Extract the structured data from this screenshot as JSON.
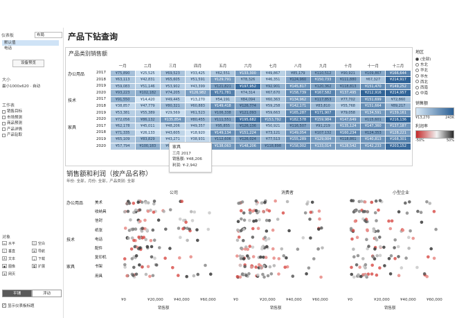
{
  "left_panel": {
    "tab": "仪表板",
    "layout_select": "布局",
    "devices": [
      "默认值",
      "电话"
    ],
    "device_preview": "设备预览",
    "size_label": "大小",
    "size_value": "最小1000x620 · 自动",
    "sheets_label": "工作表",
    "sheets": [
      "销售目标",
      "市场预测",
      "商品预测",
      "产品详情",
      "产品钻取"
    ],
    "objects_label": "对象",
    "objects": [
      {
        "icon": "▭",
        "label": "水平"
      },
      {
        "icon": "□",
        "label": "空白"
      },
      {
        "icon": "▯",
        "label": "垂直"
      },
      {
        "icon": "⊞",
        "label": "导航"
      },
      {
        "icon": "A",
        "label": "文本"
      },
      {
        "icon": "⤓",
        "label": "下载"
      },
      {
        "icon": "▣",
        "label": "图像"
      },
      {
        "icon": "⧉",
        "label": "扩展"
      },
      {
        "icon": "⊕",
        "label": "网页"
      }
    ],
    "toggle": [
      "平铺",
      "浮动"
    ],
    "show_title": "显示仪表板标题"
  },
  "title": "产品下钻查询",
  "heatmap": {
    "title": "产品类别销售额",
    "months": [
      "一月",
      "二月",
      "三月",
      "四月",
      "五月",
      "六月",
      "七月",
      "八月",
      "九月",
      "十月",
      "十一月",
      "十二月"
    ],
    "categories": [
      "办公用品",
      "技术",
      "家具"
    ],
    "years": [
      "2017",
      "2018",
      "2019",
      "2020"
    ],
    "cells": [
      [
        "¥75,890",
        "¥25,525",
        "¥69,523",
        "¥33,425",
        "¥62,551",
        "¥133,300",
        "¥49,867",
        "¥85,179",
        "¥110,512",
        "¥90,921",
        "¥109,867",
        "¥166,644"
      ],
      [
        "¥63,113",
        "¥42,831",
        "¥65,605",
        "¥51,591",
        "¥129,791",
        "¥78,326",
        "¥46,351",
        "¥124,960",
        "¥150,733",
        "¥111,880",
        "¥67,327",
        "¥214,917"
      ],
      [
        "¥59,083",
        "¥51,146",
        "¥53,902",
        "¥43,399",
        "¥121,821",
        "¥197,952",
        "¥92,901",
        "¥145,817",
        "¥120,362",
        "¥118,813",
        "¥151,470",
        "¥149,252"
      ],
      [
        "¥93,223",
        "¥102,182",
        "¥74,205",
        "¥126,982",
        "¥171,781",
        "¥74,314",
        "¥67,670",
        "¥158,739",
        "¥167,582",
        "¥137,495",
        "¥212,916",
        "¥214,957"
      ],
      [
        "¥91,550",
        "¥14,420",
        "¥49,445",
        "¥13,270",
        "¥54,191",
        "¥84,094",
        "¥60,363",
        "¥134,962",
        "¥117,853",
        "¥77,702",
        "¥151,699",
        "¥72,860"
      ],
      [
        "¥38,857",
        "¥47,779",
        "¥80,321",
        "¥60,883",
        "¥149,418",
        "¥126,774",
        "¥59,258",
        "¥142,171",
        "¥83,810",
        "¥55,768",
        "¥151,664",
        "¥89,217"
      ],
      [
        "¥53,381",
        "¥55,389",
        "¥29,569",
        "¥61,523",
        "¥106,338",
        "¥121,093",
        "¥59,663",
        "¥165,287",
        "¥171,907",
        "¥79,058",
        "¥134,591",
        "¥139,161"
      ],
      [
        "¥72,056",
        "¥86,132",
        "¥135,854",
        "¥80,455",
        "¥111,551",
        "¥195,682",
        "¥153,792",
        "¥182,578",
        "¥159,984",
        "¥147,649",
        "¥115,601",
        "¥216,136"
      ],
      [
        "¥62,178",
        "¥45,011",
        "¥48,206",
        "¥49,357",
        "¥95,855",
        "¥126,136",
        "¥50,921",
        "¥116,507",
        "¥91,219",
        "¥135,124",
        "¥147,360",
        "¥137,187"
      ],
      [
        "¥71,335",
        "¥26,133",
        "¥43,605",
        "¥18,920",
        "¥149,134",
        "¥151,224",
        "¥73,121",
        "¥149,054",
        "¥107,132",
        "¥160,234",
        "¥124,353",
        "¥128,221"
      ],
      [
        "¥65,109",
        "¥83,829",
        "¥43,271",
        "¥38,931",
        "¥112,606",
        "¥126,024",
        "¥77,513",
        "¥155,289",
        "¥129,004",
        "¥118,861",
        "¥140,813",
        "¥168,301"
      ],
      [
        "¥57,794",
        "¥100,183",
        "¥63,140",
        "¥77,103",
        "¥138,063",
        "¥148,206",
        "¥118,898",
        "¥158,002",
        "¥133,014",
        "¥128,542",
        "¥142,233",
        "¥203,152"
      ]
    ]
  },
  "tooltip": {
    "category": "家具",
    "period": "三月 2017",
    "sales_label": "销售额:",
    "sales_value": "¥48,206",
    "profit_label": "利润:",
    "profit_value": "¥-2,942"
  },
  "legend": {
    "region_title": "地区",
    "regions": [
      "(全部)",
      "东北",
      "华北",
      "华东",
      "西北",
      "西南",
      "中南"
    ],
    "selected_region": "(全部)",
    "sales_title": "销售额",
    "sales_min": "¥13,270",
    "sales_max": "243K",
    "profit_title": "利润率",
    "profit_min": "-50%",
    "profit_max": "50%",
    "color_low": "#d8e9f7",
    "color_high": "#2b5f94"
  },
  "scatter": {
    "title": "销售额和利润（按产品名称）",
    "filter_note": "年份: 全部，月份: 全部，产品类别: 全部",
    "segments": [
      "公司",
      "消费者",
      "小型企业"
    ],
    "groups": [
      {
        "category": "办公用品",
        "subs": [
          "美术",
          "收纳具",
          "信封",
          "纸张"
        ]
      },
      {
        "category": "技术",
        "subs": [
          "电话",
          "配件",
          "复印机"
        ]
      },
      {
        "category": "家具",
        "subs": [
          "书架",
          "用具"
        ]
      }
    ],
    "x_ticks": [
      "¥0",
      "¥20,000",
      "¥40,000",
      "¥60,000"
    ],
    "x_label": "销售额"
  }
}
